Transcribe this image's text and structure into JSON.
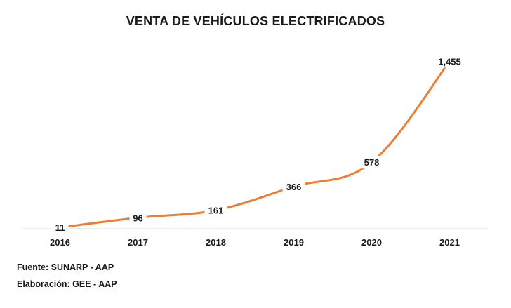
{
  "chart_data": {
    "type": "line",
    "title": "VENTA DE VEHÍCULOS ELECTRIFICADOS",
    "categories": [
      "2016",
      "2017",
      "2018",
      "2019",
      "2020",
      "2021"
    ],
    "series": [
      {
        "values": [
          11,
          96,
          161,
          366,
          578,
          1455
        ],
        "data_labels": [
          "11",
          "96",
          "161",
          "366",
          "578",
          "1,455"
        ],
        "color": "#ED7D31"
      }
    ],
    "xlabel": "",
    "ylabel": "",
    "ylim": [
      0,
      1500
    ],
    "grid": false,
    "legend": "none",
    "axis_color": "#D9D9D9"
  },
  "notes": {
    "source": "Fuente: SUNARP - AAP",
    "credit": "Elaboración: GEE - AAP"
  }
}
